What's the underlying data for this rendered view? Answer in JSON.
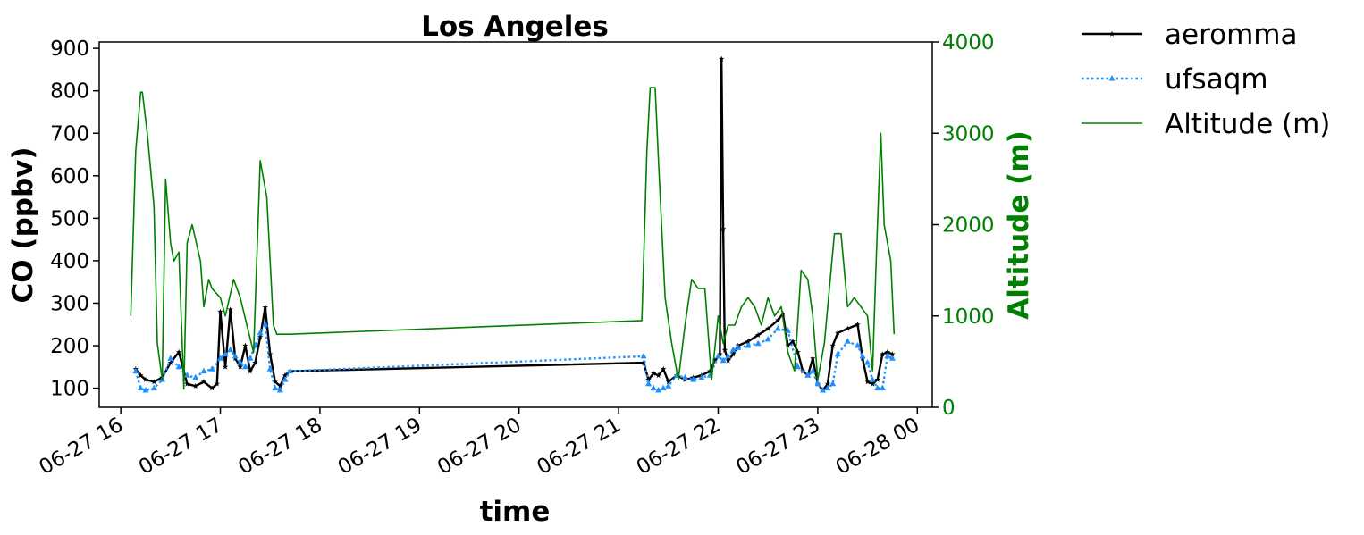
{
  "chart_data": {
    "type": "line",
    "title": "Los Angeles",
    "xlabel": "time",
    "ylabel": "CO (ppbv)",
    "y2label": "Altitude (m)",
    "xlim": [
      "06-27 15:47",
      "06-28 00:09"
    ],
    "ylim": [
      55,
      915
    ],
    "y2lim": [
      0,
      4000
    ],
    "x_ticks": [
      "06-27 16",
      "06-27 17",
      "06-27 18",
      "06-27 19",
      "06-27 20",
      "06-27 21",
      "06-27 22",
      "06-27 23",
      "06-28 00"
    ],
    "y_ticks": [
      100,
      200,
      300,
      400,
      500,
      600,
      700,
      800,
      900
    ],
    "y2_ticks": [
      0,
      1000,
      2000,
      3000,
      4000
    ],
    "grid": false,
    "legend_position": "outside-top-right",
    "colors": {
      "aeromma": "#000000",
      "ufsaqm": "#1e90ff",
      "altitude": "#008000"
    },
    "series": [
      {
        "name": "aeromma",
        "axis": "left",
        "style": "solid",
        "marker": "star",
        "x": [
          "06-27 16:09",
          "06-27 16:12",
          "06-27 16:15",
          "06-27 16:20",
          "06-27 16:25",
          "06-27 16:30",
          "06-27 16:35",
          "06-27 16:40",
          "06-27 16:45",
          "06-27 16:50",
          "06-27 16:55",
          "06-27 16:58",
          "06-27 17:00",
          "06-27 17:03",
          "06-27 17:06",
          "06-27 17:09",
          "06-27 17:12",
          "06-27 17:15",
          "06-27 17:18",
          "06-27 17:21",
          "06-27 17:24",
          "06-27 17:27",
          "06-27 17:30",
          "06-27 17:33",
          "06-27 17:36",
          "06-27 17:39",
          "06-27 17:42",
          "06-27 21:15",
          "06-27 21:18",
          "06-27 21:21",
          "06-27 21:24",
          "06-27 21:27",
          "06-27 21:30",
          "06-27 21:35",
          "06-27 21:40",
          "06-27 21:45",
          "06-27 21:50",
          "06-27 21:55",
          "06-27 21:58",
          "06-27 22:01",
          "06-27 22:02",
          "06-27 22:03",
          "06-27 22:04",
          "06-27 22:06",
          "06-27 22:09",
          "06-27 22:12",
          "06-27 22:18",
          "06-27 22:24",
          "06-27 22:30",
          "06-27 22:36",
          "06-27 22:39",
          "06-27 22:42",
          "06-27 22:45",
          "06-27 22:48",
          "06-27 22:51",
          "06-27 22:54",
          "06-27 22:57",
          "06-27 23:00",
          "06-27 23:03",
          "06-27 23:06",
          "06-27 23:09",
          "06-27 23:12",
          "06-27 23:18",
          "06-27 23:24",
          "06-27 23:27",
          "06-27 23:30",
          "06-27 23:33",
          "06-27 23:36",
          "06-27 23:39",
          "06-27 23:42",
          "06-27 23:45"
        ],
        "y": [
          145,
          130,
          120,
          115,
          125,
          160,
          185,
          110,
          105,
          115,
          100,
          110,
          280,
          150,
          285,
          170,
          150,
          200,
          140,
          160,
          220,
          290,
          180,
          115,
          105,
          130,
          140,
          160,
          120,
          135,
          130,
          145,
          115,
          130,
          120,
          125,
          130,
          140,
          165,
          180,
          875,
          475,
          190,
          165,
          180,
          200,
          210,
          225,
          240,
          260,
          275,
          200,
          210,
          185,
          140,
          130,
          170,
          110,
          95,
          110,
          200,
          230,
          240,
          250,
          170,
          115,
          110,
          120,
          180,
          185,
          180
        ]
      },
      {
        "name": "ufsaqm",
        "axis": "left",
        "style": "dotted",
        "marker": "triangle",
        "x": [
          "06-27 16:09",
          "06-27 16:12",
          "06-27 16:15",
          "06-27 16:20",
          "06-27 16:25",
          "06-27 16:30",
          "06-27 16:35",
          "06-27 16:40",
          "06-27 16:45",
          "06-27 16:50",
          "06-27 16:55",
          "06-27 17:00",
          "06-27 17:03",
          "06-27 17:06",
          "06-27 17:09",
          "06-27 17:12",
          "06-27 17:15",
          "06-27 17:18",
          "06-27 17:21",
          "06-27 17:24",
          "06-27 17:27",
          "06-27 17:30",
          "06-27 17:33",
          "06-27 17:36",
          "06-27 17:39",
          "06-27 17:42",
          "06-27 21:15",
          "06-27 21:18",
          "06-27 21:21",
          "06-27 21:24",
          "06-27 21:27",
          "06-27 21:30",
          "06-27 21:35",
          "06-27 21:40",
          "06-27 21:45",
          "06-27 21:50",
          "06-27 21:55",
          "06-27 22:00",
          "06-27 22:03",
          "06-27 22:06",
          "06-27 22:09",
          "06-27 22:12",
          "06-27 22:18",
          "06-27 22:24",
          "06-27 22:30",
          "06-27 22:36",
          "06-27 22:42",
          "06-27 22:48",
          "06-27 22:54",
          "06-27 22:57",
          "06-27 23:00",
          "06-27 23:03",
          "06-27 23:06",
          "06-27 23:09",
          "06-27 23:12",
          "06-27 23:18",
          "06-27 23:24",
          "06-27 23:27",
          "06-27 23:30",
          "06-27 23:33",
          "06-27 23:36",
          "06-27 23:39",
          "06-27 23:42",
          "06-27 23:45"
        ],
        "y": [
          140,
          100,
          95,
          100,
          120,
          170,
          150,
          130,
          125,
          140,
          145,
          170,
          180,
          190,
          175,
          160,
          150,
          170,
          200,
          230,
          250,
          145,
          100,
          95,
          120,
          140,
          175,
          110,
          100,
          95,
          100,
          105,
          130,
          125,
          120,
          125,
          130,
          175,
          165,
          175,
          190,
          195,
          200,
          205,
          215,
          240,
          235,
          150,
          130,
          140,
          110,
          95,
          100,
          110,
          180,
          210,
          200,
          175,
          160,
          120,
          100,
          100,
          175,
          170
        ]
      },
      {
        "name": "Altitude (m)",
        "axis": "right",
        "style": "solid",
        "marker": "none",
        "x": [
          "06-27 16:06",
          "06-27 16:09",
          "06-27 16:12",
          "06-27 16:13",
          "06-27 16:16",
          "06-27 16:20",
          "06-27 16:22",
          "06-27 16:25",
          "06-27 16:27",
          "06-27 16:30",
          "06-27 16:32",
          "06-27 16:35",
          "06-27 16:38",
          "06-27 16:40",
          "06-27 16:43",
          "06-27 16:48",
          "06-27 16:50",
          "06-27 16:53",
          "06-27 16:55",
          "06-27 17:00",
          "06-27 17:03",
          "06-27 17:08",
          "06-27 17:12",
          "06-27 17:16",
          "06-27 17:20",
          "06-27 17:24",
          "06-27 17:28",
          "06-27 17:32",
          "06-27 17:34",
          "06-27 17:36",
          "06-27 17:38",
          "06-27 17:42",
          "06-27 21:14",
          "06-27 21:17",
          "06-27 21:19",
          "06-27 21:22",
          "06-27 21:24",
          "06-27 21:28",
          "06-27 21:32",
          "06-27 21:36",
          "06-27 21:40",
          "06-27 21:44",
          "06-27 21:48",
          "06-27 21:52",
          "06-27 21:56",
          "06-27 22:00",
          "06-27 22:03",
          "06-27 22:06",
          "06-27 22:10",
          "06-27 22:14",
          "06-27 22:18",
          "06-27 22:22",
          "06-27 22:26",
          "06-27 22:30",
          "06-27 22:34",
          "06-27 22:38",
          "06-27 22:42",
          "06-27 22:46",
          "06-27 22:50",
          "06-27 22:54",
          "06-27 22:57",
          "06-27 23:00",
          "06-27 23:04",
          "06-27 23:10",
          "06-27 23:14",
          "06-27 23:18",
          "06-27 23:22",
          "06-27 23:26",
          "06-27 23:30",
          "06-27 23:33",
          "06-27 23:35",
          "06-27 23:38",
          "06-27 23:40",
          "06-27 23:44",
          "06-27 23:46"
        ],
        "y": [
          1000,
          2800,
          3450,
          3450,
          3000,
          2200,
          700,
          300,
          2500,
          1800,
          1600,
          1700,
          200,
          1800,
          2000,
          1600,
          1100,
          1400,
          1300,
          1200,
          1000,
          1400,
          1200,
          900,
          600,
          2700,
          2300,
          900,
          800,
          800,
          800,
          800,
          950,
          2800,
          3500,
          3500,
          2700,
          1200,
          700,
          300,
          900,
          1400,
          1300,
          1300,
          300,
          1000,
          700,
          900,
          900,
          1100,
          1200,
          1100,
          900,
          1200,
          1000,
          1100,
          600,
          400,
          1500,
          1400,
          1000,
          300,
          700,
          1900,
          1900,
          1100,
          1200,
          1100,
          1000,
          400,
          1500,
          3000,
          2000,
          1600,
          800
        ]
      }
    ]
  }
}
